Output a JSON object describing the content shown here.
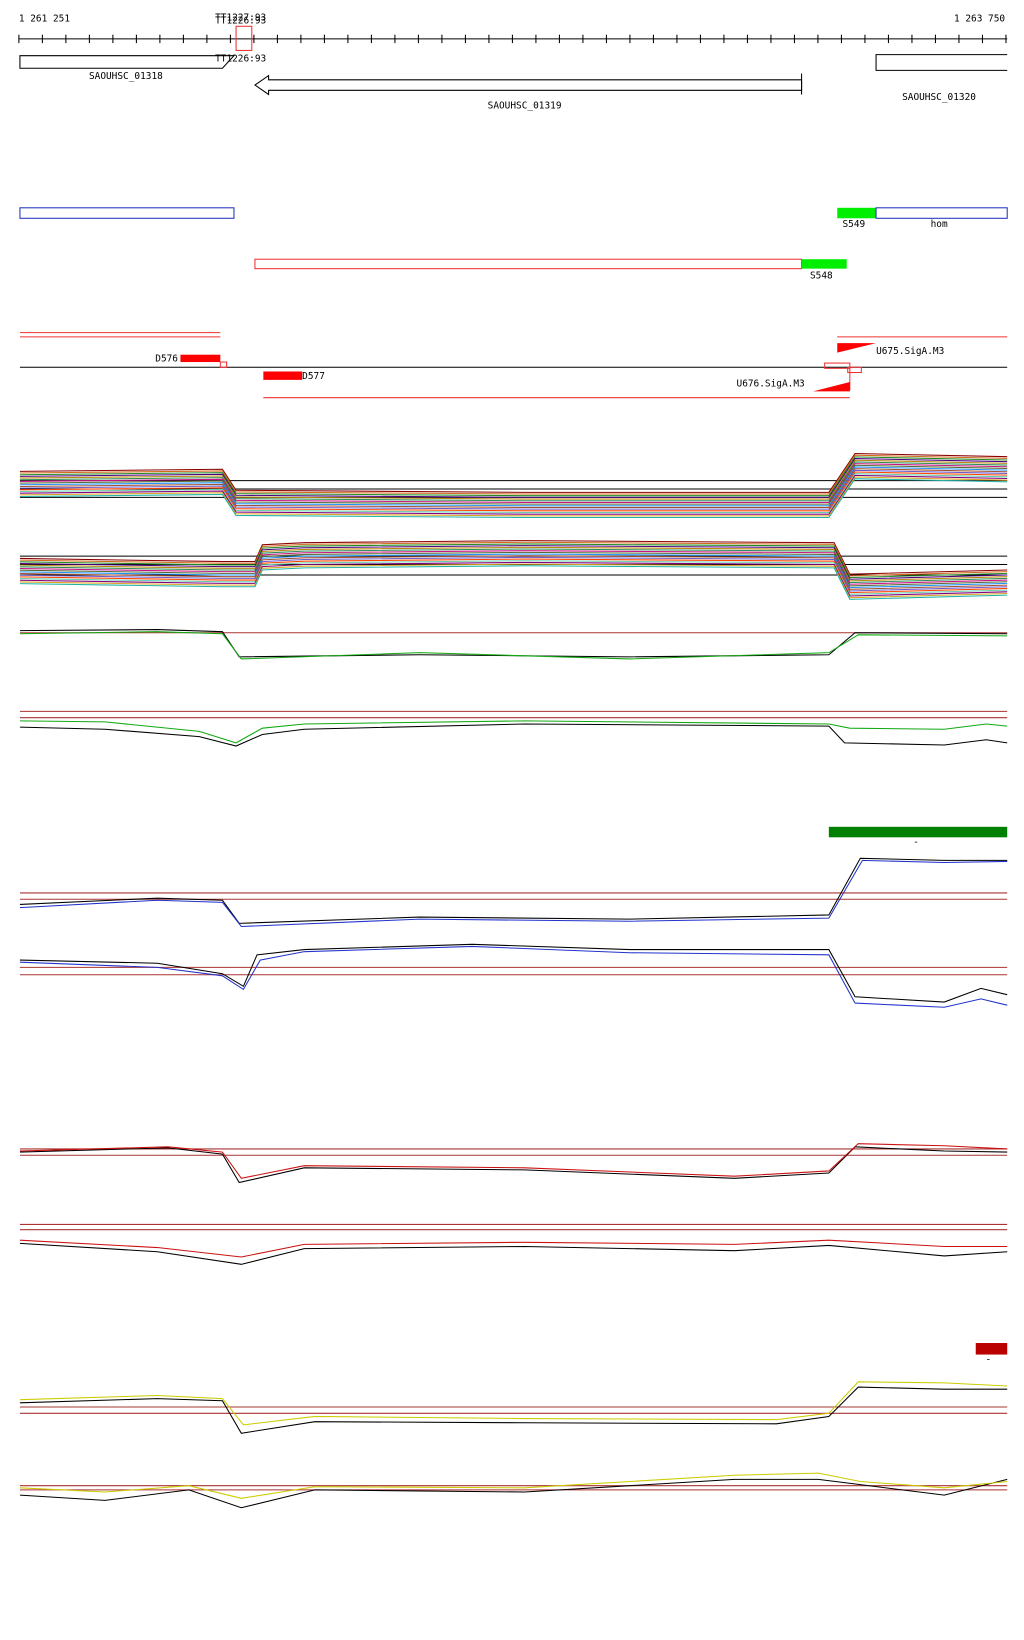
{
  "ruler": {
    "start": "1 261 251",
    "end": "1 263 750",
    "markers": [
      "TT1227:93",
      "TT1226:93"
    ]
  },
  "genes": {
    "terminator": "TT1226:93",
    "items": [
      "SAOUHSC_01318",
      "SAOUHSC_01319",
      "SAOUHSC_01320"
    ]
  },
  "segments": {
    "upper": [
      "S549",
      "hom"
    ],
    "lower": "S548"
  },
  "features": {
    "down": [
      "D576",
      "D577"
    ],
    "up": [
      "U675.SigA.M3",
      "U676.SigA.M3"
    ]
  },
  "clusters": {
    "green_mark": "-",
    "red_mark": "-"
  }
}
